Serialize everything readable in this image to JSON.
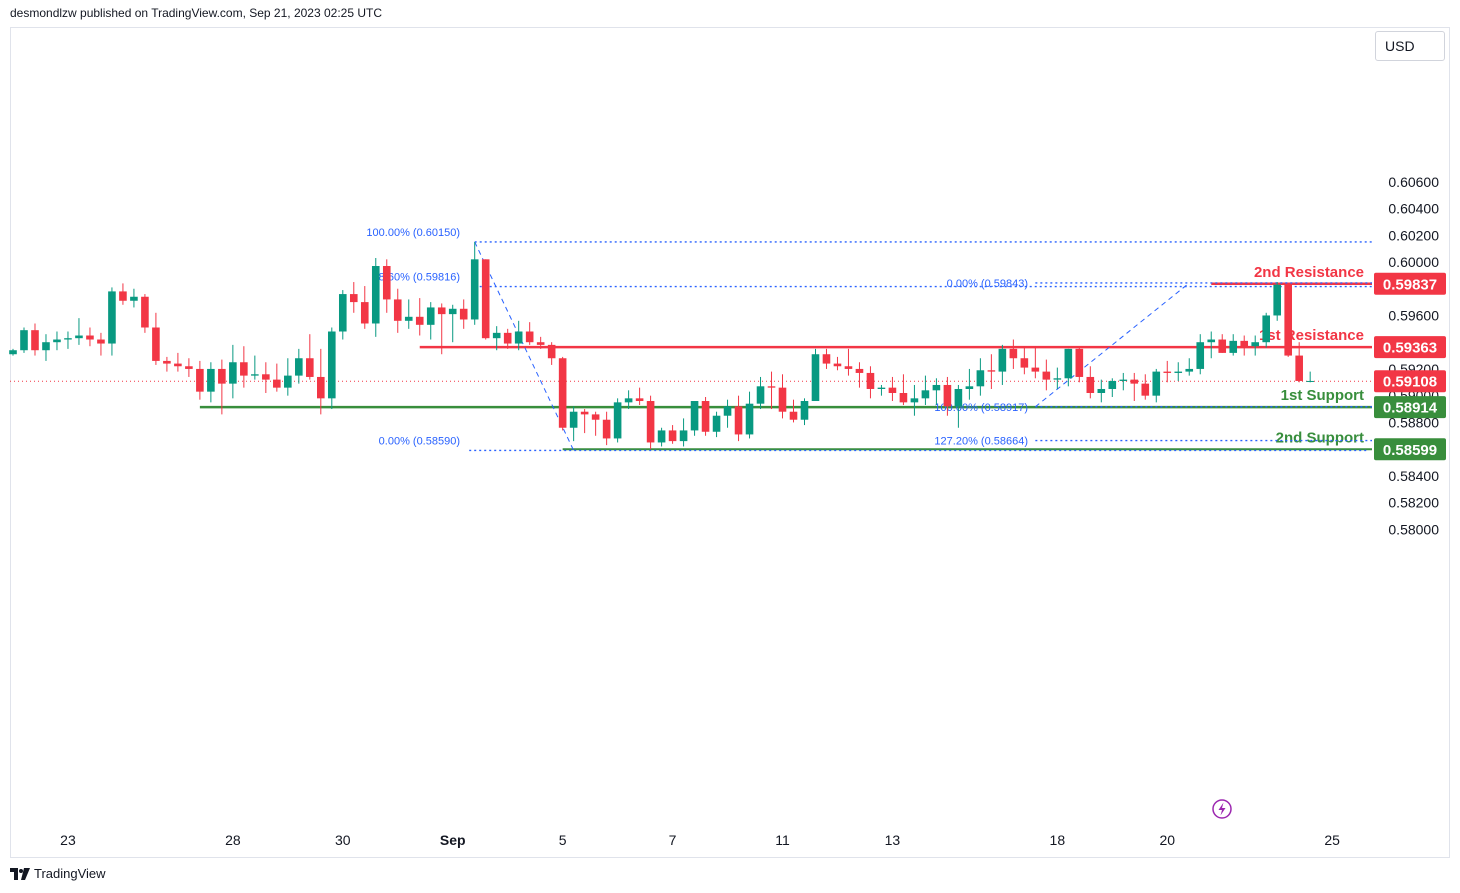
{
  "header": {
    "published": "desmondlzw published on TradingView.com, Sep 21, 2023 02:25 UTC"
  },
  "toolbar": {
    "currency": "USD"
  },
  "footer": {
    "brand": "TradingView"
  },
  "colors": {
    "up": "#089981",
    "down": "#f23645",
    "resistance": "#f23645",
    "support": "#388e3c",
    "fib": "#2962ff",
    "current": "#f23645"
  },
  "chart_data": {
    "type": "candlestick",
    "y_ticks": [
      "0.60600",
      "0.60400",
      "0.60200",
      "0.60000",
      "0.59600",
      "0.59200",
      "0.59000",
      "0.58800",
      "0.58400",
      "0.58200",
      "0.58000"
    ],
    "ylim": [
      0.5785,
      0.6085
    ],
    "x_ticks": [
      {
        "label": "23",
        "bar": 5,
        "bold": false
      },
      {
        "label": "28",
        "bar": 20,
        "bold": false
      },
      {
        "label": "30",
        "bar": 30,
        "bold": false
      },
      {
        "label": "Sep",
        "bar": 40,
        "bold": true
      },
      {
        "label": "5",
        "bar": 50,
        "bold": false
      },
      {
        "label": "7",
        "bar": 60,
        "bold": false
      },
      {
        "label": "11",
        "bar": 70,
        "bold": false
      },
      {
        "label": "13",
        "bar": 80,
        "bold": false
      },
      {
        "label": "18",
        "bar": 95,
        "bold": false
      },
      {
        "label": "20",
        "bar": 105,
        "bold": false
      },
      {
        "label": "25",
        "bar": 120,
        "bold": false
      }
    ],
    "candles": [
      [
        0.5931,
        0.5935,
        0.593,
        0.5934
      ],
      [
        0.5934,
        0.5951,
        0.5932,
        0.5949
      ],
      [
        0.5949,
        0.5954,
        0.593,
        0.5934
      ],
      [
        0.5934,
        0.5946,
        0.5926,
        0.594
      ],
      [
        0.594,
        0.5948,
        0.5934,
        0.5942
      ],
      [
        0.5942,
        0.5948,
        0.5935,
        0.5943
      ],
      [
        0.5943,
        0.5958,
        0.5938,
        0.5945
      ],
      [
        0.5945,
        0.5951,
        0.5937,
        0.5942
      ],
      [
        0.5942,
        0.5947,
        0.593,
        0.5939
      ],
      [
        0.5939,
        0.5981,
        0.593,
        0.5978
      ],
      [
        0.5978,
        0.5984,
        0.5968,
        0.5971
      ],
      [
        0.5971,
        0.598,
        0.5966,
        0.5974
      ],
      [
        0.5974,
        0.5976,
        0.5947,
        0.5951
      ],
      [
        0.5951,
        0.5962,
        0.5923,
        0.5926
      ],
      [
        0.5926,
        0.5929,
        0.5918,
        0.5924
      ],
      [
        0.5924,
        0.5932,
        0.5918,
        0.5922
      ],
      [
        0.5922,
        0.5928,
        0.5914,
        0.592
      ],
      [
        0.592,
        0.5926,
        0.5897,
        0.5903
      ],
      [
        0.5903,
        0.5925,
        0.5895,
        0.592
      ],
      [
        0.592,
        0.5927,
        0.5886,
        0.5909
      ],
      [
        0.5909,
        0.5938,
        0.5898,
        0.5925
      ],
      [
        0.5925,
        0.5937,
        0.5906,
        0.5915
      ],
      [
        0.5915,
        0.593,
        0.5912,
        0.5916
      ],
      [
        0.5916,
        0.5925,
        0.5902,
        0.5912
      ],
      [
        0.5912,
        0.5924,
        0.5903,
        0.5906
      ],
      [
        0.5906,
        0.5928,
        0.59,
        0.5915
      ],
      [
        0.5915,
        0.5935,
        0.5909,
        0.5928
      ],
      [
        0.5928,
        0.5946,
        0.5912,
        0.5914
      ],
      [
        0.5914,
        0.5935,
        0.5886,
        0.5898
      ],
      [
        0.5898,
        0.5951,
        0.589,
        0.5948
      ],
      [
        0.5948,
        0.5979,
        0.5942,
        0.5976
      ],
      [
        0.5976,
        0.5985,
        0.5962,
        0.597
      ],
      [
        0.597,
        0.5982,
        0.595,
        0.5954
      ],
      [
        0.5954,
        0.6003,
        0.5944,
        0.5997
      ],
      [
        0.5997,
        0.6002,
        0.5962,
        0.5972
      ],
      [
        0.5972,
        0.598,
        0.5947,
        0.5956
      ],
      [
        0.5956,
        0.5972,
        0.595,
        0.5959
      ],
      [
        0.5959,
        0.5973,
        0.5945,
        0.5953
      ],
      [
        0.5953,
        0.597,
        0.5942,
        0.5966
      ],
      [
        0.5966,
        0.5969,
        0.5931,
        0.5961
      ],
      [
        0.5961,
        0.5968,
        0.594,
        0.5965
      ],
      [
        0.5965,
        0.5972,
        0.595,
        0.5957
      ],
      [
        0.5957,
        0.6015,
        0.5953,
        0.6002
      ],
      [
        0.6002,
        0.6002,
        0.5942,
        0.5943
      ],
      [
        0.5943,
        0.5952,
        0.5934,
        0.5947
      ],
      [
        0.5947,
        0.595,
        0.5935,
        0.5939
      ],
      [
        0.5939,
        0.5956,
        0.5934,
        0.5948
      ],
      [
        0.5948,
        0.5955,
        0.5938,
        0.594
      ],
      [
        0.594,
        0.5944,
        0.5935,
        0.5938
      ],
      [
        0.5938,
        0.594,
        0.5923,
        0.5928
      ],
      [
        0.5928,
        0.5929,
        0.5874,
        0.5876
      ],
      [
        0.5876,
        0.5892,
        0.5866,
        0.5888
      ],
      [
        0.5888,
        0.589,
        0.5872,
        0.5886
      ],
      [
        0.5886,
        0.5888,
        0.587,
        0.5882
      ],
      [
        0.5882,
        0.5888,
        0.5863,
        0.5868
      ],
      [
        0.5868,
        0.5898,
        0.5865,
        0.5895
      ],
      [
        0.5895,
        0.5904,
        0.589,
        0.5898
      ],
      [
        0.5898,
        0.5906,
        0.5893,
        0.5896
      ],
      [
        0.5896,
        0.59,
        0.586,
        0.5865
      ],
      [
        0.5865,
        0.5876,
        0.5862,
        0.5874
      ],
      [
        0.5874,
        0.5878,
        0.5864,
        0.5866
      ],
      [
        0.5866,
        0.5883,
        0.5862,
        0.5874
      ],
      [
        0.5874,
        0.5894,
        0.587,
        0.5896
      ],
      [
        0.5896,
        0.5899,
        0.587,
        0.5873
      ],
      [
        0.5873,
        0.5888,
        0.5869,
        0.5885
      ],
      [
        0.5885,
        0.5897,
        0.5876,
        0.5892
      ],
      [
        0.5892,
        0.59,
        0.5866,
        0.5871
      ],
      [
        0.5871,
        0.5903,
        0.5868,
        0.5894
      ],
      [
        0.5894,
        0.5914,
        0.589,
        0.5907
      ],
      [
        0.5907,
        0.5918,
        0.589,
        0.5906
      ],
      [
        0.5906,
        0.5916,
        0.5883,
        0.5888
      ],
      [
        0.5888,
        0.5897,
        0.588,
        0.5882
      ],
      [
        0.5882,
        0.5898,
        0.5878,
        0.5896
      ],
      [
        0.5896,
        0.5935,
        0.5896,
        0.5931
      ],
      [
        0.5931,
        0.5935,
        0.592,
        0.5924
      ],
      [
        0.5924,
        0.5929,
        0.5919,
        0.5922
      ],
      [
        0.5922,
        0.5935,
        0.5915,
        0.592
      ],
      [
        0.592,
        0.5925,
        0.5906,
        0.5917
      ],
      [
        0.5917,
        0.5922,
        0.5898,
        0.5905
      ],
      [
        0.5905,
        0.5908,
        0.59,
        0.5906
      ],
      [
        0.5906,
        0.5914,
        0.5896,
        0.5902
      ],
      [
        0.5902,
        0.5916,
        0.5893,
        0.5895
      ],
      [
        0.5895,
        0.5908,
        0.5885,
        0.5898
      ],
      [
        0.5898,
        0.5915,
        0.5893,
        0.5904
      ],
      [
        0.5904,
        0.5913,
        0.5893,
        0.5908
      ],
      [
        0.5908,
        0.5914,
        0.5885,
        0.5892
      ],
      [
        0.5892,
        0.5908,
        0.5876,
        0.5905
      ],
      [
        0.5905,
        0.592,
        0.5897,
        0.5907
      ],
      [
        0.5907,
        0.5928,
        0.59,
        0.5919
      ],
      [
        0.5919,
        0.5931,
        0.5905,
        0.5918
      ],
      [
        0.5918,
        0.5938,
        0.5908,
        0.5935
      ],
      [
        0.5935,
        0.5942,
        0.592,
        0.5928
      ],
      [
        0.5928,
        0.5937,
        0.5916,
        0.5921
      ],
      [
        0.5921,
        0.5937,
        0.5913,
        0.5918
      ],
      [
        0.5918,
        0.5927,
        0.5904,
        0.5912
      ],
      [
        0.5912,
        0.5921,
        0.5905,
        0.5913
      ],
      [
        0.5913,
        0.5935,
        0.5907,
        0.5935
      ],
      [
        0.5935,
        0.5936,
        0.591,
        0.5914
      ],
      [
        0.5914,
        0.5922,
        0.5898,
        0.5902
      ],
      [
        0.5902,
        0.5912,
        0.5895,
        0.5905
      ],
      [
        0.5905,
        0.5913,
        0.5899,
        0.5911
      ],
      [
        0.5911,
        0.5917,
        0.5904,
        0.5912
      ],
      [
        0.5912,
        0.5917,
        0.5896,
        0.5909
      ],
      [
        0.5909,
        0.5916,
        0.5897,
        0.59
      ],
      [
        0.59,
        0.592,
        0.5895,
        0.5918
      ],
      [
        0.5918,
        0.5926,
        0.591,
        0.5917
      ],
      [
        0.5917,
        0.5925,
        0.5911,
        0.5918
      ],
      [
        0.5918,
        0.5928,
        0.5915,
        0.592
      ],
      [
        0.592,
        0.5946,
        0.5916,
        0.594
      ],
      [
        0.594,
        0.5948,
        0.5928,
        0.5942
      ],
      [
        0.5942,
        0.5946,
        0.5932,
        0.5932
      ],
      [
        0.5932,
        0.5946,
        0.593,
        0.5941
      ],
      [
        0.5941,
        0.5945,
        0.593,
        0.5937
      ],
      [
        0.5937,
        0.5945,
        0.593,
        0.594
      ],
      [
        0.594,
        0.5962,
        0.5936,
        0.596
      ],
      [
        0.596,
        0.5985,
        0.5956,
        0.5983
      ],
      [
        0.5983,
        0.5983,
        0.5929,
        0.593
      ],
      [
        0.593,
        0.594,
        0.591,
        0.5911
      ],
      [
        0.5911,
        0.5918,
        0.591,
        0.5911
      ]
    ],
    "levels": [
      {
        "name": "2nd Resistance",
        "value": "0.59837",
        "price": 0.59837,
        "kind": "resistance"
      },
      {
        "name": "1st Resistance",
        "value": "0.59363",
        "price": 0.59363,
        "kind": "resistance"
      },
      {
        "name": "",
        "value": "0.59108",
        "price": 0.59108,
        "kind": "current"
      },
      {
        "name": "1st Support",
        "value": "0.58914",
        "price": 0.58914,
        "kind": "support"
      },
      {
        "name": "2nd Support",
        "value": "0.58599",
        "price": 0.58599,
        "kind": "support"
      }
    ],
    "fib_labels": [
      "100.00% (0.60150)",
      "78.60% (0.59816)",
      "0.00% (0.58590)",
      "0.00% (0.59843)",
      "100.00% (0.58917)",
      "127.20% (0.58664)"
    ]
  }
}
